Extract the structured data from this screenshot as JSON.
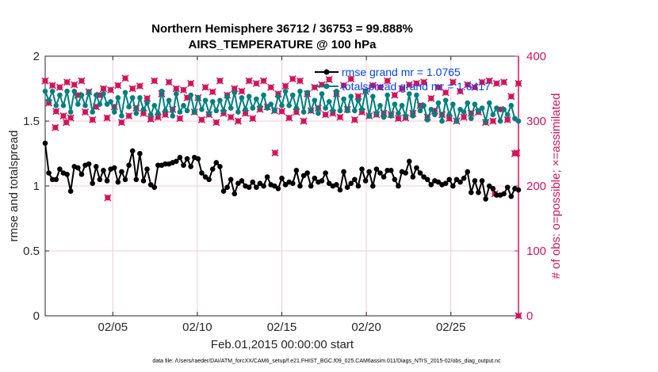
{
  "chart_data": {
    "type": "line",
    "title_line1": "Northern Hemisphere 36712 / 36753 = 99.888%",
    "title_line2": "AIRS_TEMPERATURE @ 100 hPa",
    "xlabel": "Feb.01,2015 00:00:00 start",
    "ylabel_left": "rmse and totalspread",
    "ylabel_right": "# of obs: o=possible; ×=assimilated",
    "xlim": [
      1.0,
      29.0
    ],
    "ylim_left": [
      0,
      2
    ],
    "ylim_right": [
      0,
      400
    ],
    "x_ticks": [
      {
        "x": 5,
        "label": "02/05"
      },
      {
        "x": 10,
        "label": "02/10"
      },
      {
        "x": 15,
        "label": "02/15"
      },
      {
        "x": 20,
        "label": "02/20"
      },
      {
        "x": 25,
        "label": "02/25"
      }
    ],
    "y_ticks_left": [
      "0",
      "0.5",
      "1",
      "1.5",
      "2"
    ],
    "y_ticks_right": [
      "0",
      "100",
      "200",
      "300",
      "400"
    ],
    "footnote": "data file: /Users/raeder/DAI/ATM_forcXX/CAM6_setup/f.e21.FHIST_BGC.f09_025.CAM6assim.011/Diags_NTrS_2015-02/obs_diag_output.nc",
    "colors": {
      "rmse": "#000000",
      "spread": "#008080",
      "obs": "#d4145a",
      "legend_text": "#0044ff",
      "grid": "#f0c8d8"
    },
    "series": [
      {
        "name": "rmse grand mr = 1.0765",
        "axis": "left",
        "values": [
          1.33,
          1.1,
          1.05,
          1.05,
          1.13,
          1.1,
          1.09,
          0.96,
          1.15,
          1.14,
          1.09,
          1.16,
          1.17,
          1.02,
          1.15,
          1.05,
          1.12,
          1.04,
          1.13,
          1.14,
          1.03,
          1.11,
          1.05,
          1.16,
          1.27,
          1.05,
          1.25,
          1.04,
          1.13,
          1.01,
          0.99,
          1.16,
          1.16,
          1.17,
          1.17,
          1.18,
          1.19,
          1.22,
          1.16,
          1.21,
          1.15,
          1.22,
          1.21,
          1.1,
          1.07,
          1.05,
          1.13,
          1.18,
          1.15,
          0.96,
          0.99,
          1.05,
          0.94,
          1.02,
          1.04,
          1.0,
          0.99,
          1.03,
          0.99,
          1.02,
          1.0,
          1.07,
          1.01,
          1.0,
          0.98,
          1.06,
          1.01,
          1.03,
          1.02,
          1.12,
          1.0,
          1.08,
          1.1,
          1.0,
          1.06,
          1.03,
          1.04,
          1.1,
          1.02,
          1.0,
          1.01,
          0.97,
          1.11,
          0.99,
          1.02,
          1.05,
          1.0,
          1.13,
          1.04,
          1.11,
          1.0,
          1.13,
          1.1,
          1.07,
          1.12,
          1.12,
          1.05,
          1.0,
          1.11,
          1.1,
          1.19,
          1.07,
          1.14,
          1.1,
          1.07,
          1.05,
          1.01,
          1.04,
          1.03,
          1.01,
          1.02,
          1.05,
          1.0,
          1.05,
          1.03,
          1.06,
          1.11,
          0.95,
          1.04,
          0.95,
          1.04,
          0.9,
          1.0,
          0.98,
          0.93,
          0.93,
          0.94,
          0.99,
          0.92,
          0.98,
          0.97
        ]
      },
      {
        "name": "totalspread grand mr = 1.6417",
        "axis": "left",
        "values": [
          1.73,
          1.66,
          1.73,
          1.62,
          1.7,
          1.62,
          1.73,
          1.57,
          1.73,
          1.63,
          1.7,
          1.62,
          1.72,
          1.57,
          1.7,
          1.63,
          1.71,
          1.63,
          1.65,
          1.57,
          1.68,
          1.54,
          1.72,
          1.61,
          1.68,
          1.56,
          1.68,
          1.59,
          1.64,
          1.55,
          1.62,
          1.56,
          1.73,
          1.58,
          1.66,
          1.54,
          1.71,
          1.57,
          1.62,
          1.58,
          1.7,
          1.57,
          1.68,
          1.59,
          1.66,
          1.56,
          1.65,
          1.58,
          1.66,
          1.58,
          1.69,
          1.6,
          1.72,
          1.57,
          1.68,
          1.59,
          1.69,
          1.6,
          1.67,
          1.61,
          1.7,
          1.6,
          1.63,
          1.58,
          1.69,
          1.62,
          1.73,
          1.62,
          1.7,
          1.6,
          1.73,
          1.57,
          1.72,
          1.58,
          1.66,
          1.56,
          1.71,
          1.6,
          1.65,
          1.58,
          1.73,
          1.58,
          1.67,
          1.58,
          1.69,
          1.58,
          1.66,
          1.59,
          1.73,
          1.54,
          1.69,
          1.56,
          1.62,
          1.53,
          1.7,
          1.54,
          1.63,
          1.56,
          1.62,
          1.54,
          1.71,
          1.54,
          1.7,
          1.58,
          1.62,
          1.51,
          1.59,
          1.55,
          1.64,
          1.5,
          1.66,
          1.55,
          1.63,
          1.5,
          1.59,
          1.57,
          1.64,
          1.52,
          1.63,
          1.58,
          1.6,
          1.5,
          1.64,
          1.55,
          1.6,
          1.5,
          1.59,
          1.55,
          1.62,
          1.52,
          1.5
        ]
      },
      {
        "name": "obs",
        "axis": "right",
        "values": [
          362,
          328,
          355,
          315,
          352,
          308,
          360,
          305,
          356,
          340,
          362,
          314,
          345,
          302,
          322,
          340,
          350,
          305,
          348,
          322,
          355,
          298,
          366,
          308,
          350,
          320,
          354,
          312,
          335,
          303,
          362,
          306,
          342,
          310,
          360,
          318,
          350,
          304,
          348,
          336,
          358,
          314,
          336,
          302,
          352,
          310,
          345,
          298,
          362,
          312,
          340,
          306,
          350,
          300,
          346,
          312,
          362,
          304,
          358,
          318,
          362,
          322,
          352,
          316,
          342,
          315,
          354,
          305,
          365,
          314,
          362,
          300,
          342,
          316,
          352,
          320,
          356,
          310,
          364,
          312,
          342,
          306,
          355,
          318,
          365,
          302,
          338,
          314,
          346,
          308,
          355,
          310,
          352,
          312,
          362,
          310,
          340,
          304,
          350,
          305,
          356,
          312,
          358,
          324,
          360,
          306,
          335,
          316,
          352,
          310,
          344,
          304,
          360,
          300,
          346,
          306,
          356,
          312,
          352,
          314,
          360,
          298,
          362,
          300,
          358,
          318,
          360,
          302,
          338,
          250,
          358
        ]
      }
    ],
    "sparse_obs": [
      {
        "x": 1.6,
        "value": 290
      },
      {
        "x": 2.25,
        "value": 298
      },
      {
        "x": 4.7,
        "value": 182
      },
      {
        "x": 14.6,
        "value": 251
      },
      {
        "x": 27.6,
        "value": 188
      },
      {
        "x": 28.9,
        "value": 251
      },
      {
        "x": 29.0,
        "value": 0
      }
    ]
  }
}
